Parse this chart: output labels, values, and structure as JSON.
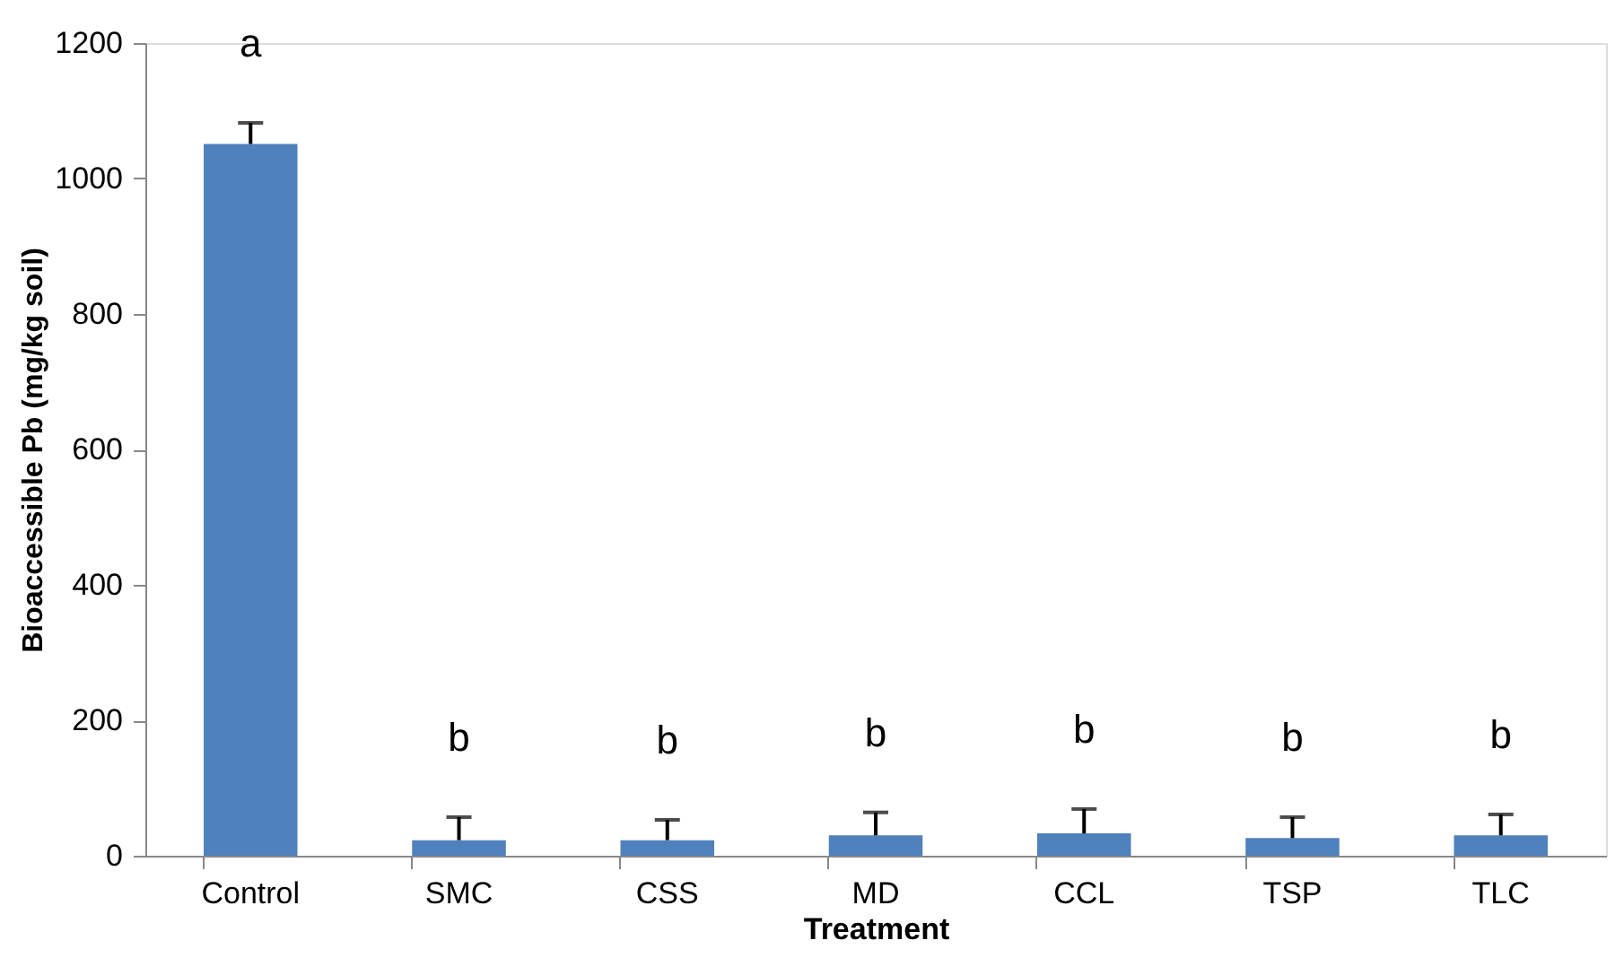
{
  "chart_data": {
    "type": "bar",
    "xlabel": "Treatment",
    "ylabel": "Bioaccessible Pb (mg/kg soil)",
    "categories": [
      "Control",
      "SMC",
      "CSS",
      "MD",
      "CCL",
      "TSP",
      "TLC"
    ],
    "values": [
      1051,
      23,
      23,
      30,
      33,
      26,
      30
    ],
    "errors": [
      [
        1051,
        1082
      ],
      [
        23,
        57
      ],
      [
        23,
        53
      ],
      [
        30,
        64
      ],
      [
        33,
        69
      ],
      [
        26,
        57
      ],
      [
        30,
        61
      ]
    ],
    "color": "#4f81bd",
    "ylim": [
      0,
      1200
    ],
    "yticks": [
      0,
      200,
      400,
      600,
      800,
      1000,
      1200
    ],
    "grid": false,
    "annotations": [
      "a",
      "b",
      "b",
      "b",
      "b",
      "b",
      "b"
    ]
  }
}
